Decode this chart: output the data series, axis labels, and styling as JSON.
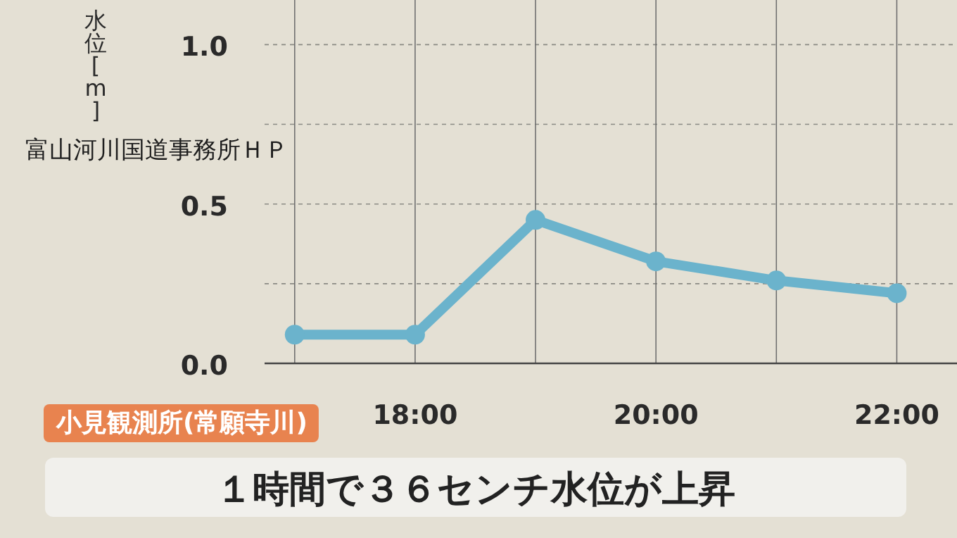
{
  "chart_data": {
    "type": "line",
    "title": "１時間で３６センチ水位が上昇",
    "subtitle": "小見観測所(常願寺川)",
    "ylabel": "水位[m]",
    "annotations": [
      "富山河川国道事務所ＨＰ"
    ],
    "x": [
      17,
      18,
      19,
      20,
      21,
      22
    ],
    "series": [
      {
        "color": "#6bb3cc",
        "values": [
          0.09,
          0.09,
          0.45,
          0.32,
          0.26,
          0.22
        ]
      }
    ],
    "xlim": [
      16.75,
      22.5
    ],
    "ylim": [
      0,
      1.14
    ],
    "xticks": [
      {
        "value": 17,
        "label": null
      },
      {
        "value": 18,
        "label": "18:00"
      },
      {
        "value": 19,
        "label": null
      },
      {
        "value": 20,
        "label": "20:00"
      },
      {
        "value": 21,
        "label": null
      },
      {
        "value": 22,
        "label": "22:00"
      }
    ],
    "yticks": [
      {
        "value": 0,
        "label": "0.0"
      },
      {
        "value": 0.25,
        "label": null
      },
      {
        "value": 0.5,
        "label": "0.5"
      },
      {
        "value": 0.75,
        "label": null
      },
      {
        "value": 1,
        "label": "1.0"
      }
    ],
    "grid": true,
    "marker": "circle"
  }
}
